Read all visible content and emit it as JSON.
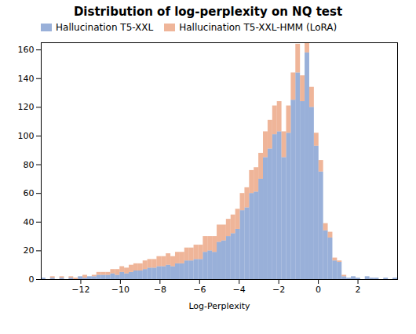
{
  "chart_data": {
    "type": "histogram",
    "title": "Distribution of log-perplexity on NQ test",
    "xlabel": "Log-Perplexity",
    "bins": [
      -14,
      -13.766234,
      -13.532468,
      -13.298701,
      -13.064935,
      -12.831169,
      -12.597403,
      -12.363636,
      -12.12987,
      -11.896104,
      -11.662338,
      -11.428571,
      -11.194805,
      -10.961039,
      -10.727273,
      -10.493506,
      -10.25974,
      -10.025974,
      -9.792208,
      -9.558442,
      -9.324675,
      -9.090909,
      -8.857143,
      -8.623377,
      -8.38961,
      -8.155844,
      -7.922078,
      -7.688312,
      -7.454545,
      -7.220779,
      -6.987013,
      -6.753247,
      -6.519481,
      -6.285714,
      -6.051948,
      -5.818182,
      -5.584416,
      -5.350649,
      -5.116883,
      -4.883117,
      -4.649351,
      -4.415584,
      -4.181818,
      -3.948052,
      -3.714286,
      -3.480519,
      -3.246753,
      -3.012987,
      -2.779221,
      -2.545455,
      -2.311688,
      -2.077922,
      -1.844156,
      -1.61039,
      -1.376623,
      -1.142857,
      -0.909091,
      -0.675325,
      -0.441558,
      -0.207792,
      0.025974,
      0.25974,
      0.493506,
      0.727273,
      0.961039,
      1.194805,
      1.428571,
      1.662338,
      1.896104,
      2.12987,
      2.363636,
      2.597403,
      2.831169,
      3.064935,
      3.298701,
      3.532468,
      3.766234,
      4
    ],
    "series": [
      {
        "name": "Hallucination T5-XXL",
        "color": "#6e8fc9",
        "values": [
          1,
          0,
          1,
          0,
          1,
          0,
          1,
          0,
          2,
          1,
          2,
          2,
          3,
          3,
          3,
          4,
          3,
          5,
          4,
          5,
          6,
          6,
          7,
          8,
          8,
          9,
          9,
          10,
          9,
          11,
          11,
          13,
          13,
          14,
          14,
          19,
          20,
          19,
          26,
          27,
          30,
          32,
          35,
          48,
          50,
          60,
          61,
          70,
          85,
          91,
          101,
          103,
          85,
          102,
          125,
          144,
          124,
          158,
          120,
          93,
          75,
          34,
          29,
          13,
          12,
          2,
          1,
          2,
          1,
          0,
          2,
          1,
          1,
          0,
          1,
          0,
          1
        ]
      },
      {
        "name": "Hallucination T5-XXL-HMM (LoRA)",
        "color": "#e8956d",
        "values": [
          0,
          0,
          1,
          0,
          1,
          0,
          1,
          1,
          0,
          2,
          0,
          1,
          2,
          2,
          2,
          3,
          4,
          4,
          4,
          5,
          5,
          5,
          6,
          6,
          6,
          7,
          7,
          8,
          7,
          8,
          8,
          9,
          9,
          10,
          10,
          11,
          10,
          11,
          12,
          11,
          12,
          13,
          14,
          12,
          14,
          16,
          17,
          18,
          18,
          20,
          20,
          21,
          18,
          19,
          19,
          20,
          18,
          15,
          14,
          9,
          8,
          5,
          4,
          2,
          1,
          1,
          0,
          0,
          0,
          0,
          0,
          0,
          0,
          0,
          0,
          0,
          0
        ]
      }
    ],
    "xlim": [
      -14,
      4
    ],
    "ylim": [
      0,
      165
    ],
    "xticks": [
      -12,
      -10,
      -8,
      -6,
      -4,
      -2,
      0,
      2
    ],
    "yticks": [
      0,
      20,
      40,
      60,
      80,
      100,
      120,
      140,
      160
    ],
    "grid": false,
    "legend": "upper left"
  }
}
